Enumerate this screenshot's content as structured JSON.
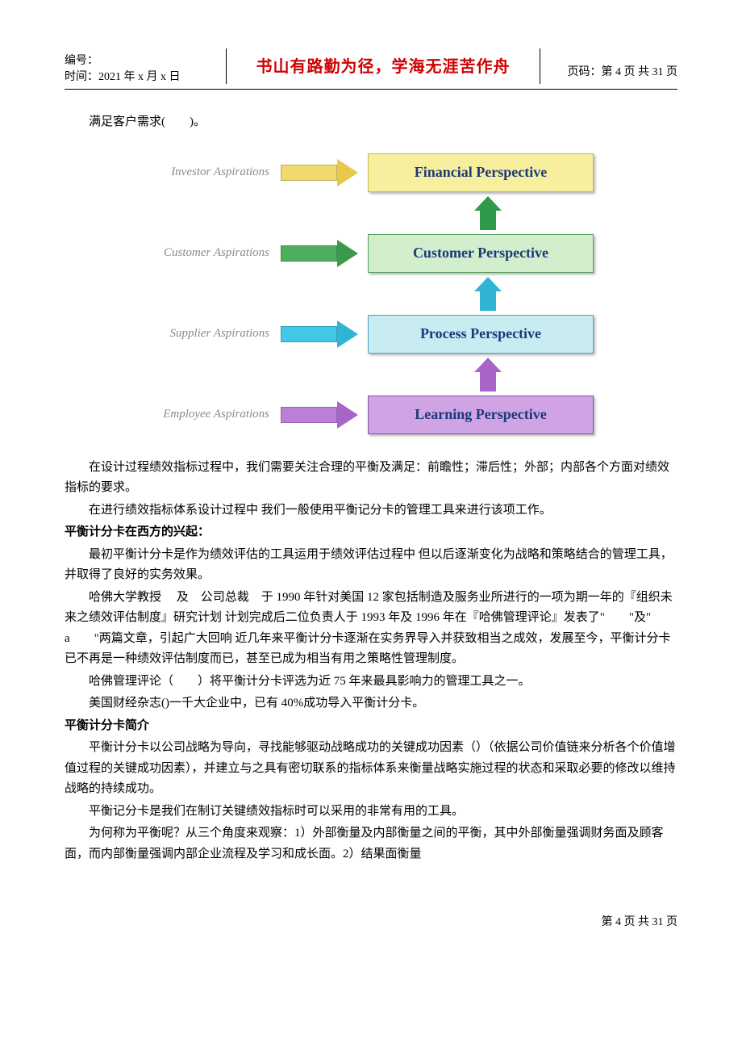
{
  "header": {
    "serial_label": "编号：",
    "time_label": "时间：2021 年 x 月 x 日",
    "motto": "书山有路勤为径，学海无涯苦作舟",
    "page_label": "页码：第 4 页 共 31 页"
  },
  "top_para": "满足客户需求(　　)。",
  "diagram": {
    "rows": [
      {
        "aspiration": "Investor Aspirations",
        "arrow_shaft_color": "#f2d96b",
        "arrow_head_color": "#e8c84a",
        "box_bg": "#f7ef9e",
        "box_border": "#c9b84e",
        "box_text": "Financial Perspective",
        "box_text_color": "#1a3a7a"
      },
      {
        "aspiration": "Customer Aspirations",
        "arrow_shaft_color": "#4fae5e",
        "arrow_head_color": "#3d9a4c",
        "box_bg": "#d3eecd",
        "box_border": "#5aa060",
        "box_text": "Customer Perspective",
        "box_text_color": "#1a3a7a"
      },
      {
        "aspiration": "Supplier Aspirations",
        "arrow_shaft_color": "#3fc8e8",
        "arrow_head_color": "#2fb4d6",
        "box_bg": "#c9ecf3",
        "box_border": "#4aa8bd",
        "box_text": "Process Perspective",
        "box_text_color": "#1a3a7a"
      },
      {
        "aspiration": "Employee Aspirations",
        "arrow_shaft_color": "#bb7fd8",
        "arrow_head_color": "#a864c9",
        "box_bg": "#cfa3e4",
        "box_border": "#8a4fa8",
        "box_text": "Learning Perspective",
        "box_text_color": "#1a3a7a"
      }
    ],
    "connectors": [
      {
        "shaft_color": "#2e9a4a",
        "head_color": "#2e9a4a"
      },
      {
        "shaft_color": "#2fb4d6",
        "head_color": "#2fb4d6"
      },
      {
        "shaft_color": "#a864c9",
        "head_color": "#a864c9"
      }
    ]
  },
  "body": {
    "p1": "在设计过程绩效指标过程中，我们需要关注合理的平衡及满足：前瞻性；滞后性；外部；内部各个方面对绩效指标的要求。",
    "p2": "在进行绩效指标体系设计过程中 我们一般使用平衡记分卡的管理工具来进行该项工作。",
    "h1": "平衡计分卡在西方的兴起：",
    "p3": "最初平衡计分卡是作为绩效评估的工具运用于绩效评估过程中 但以后逐渐变化为战略和策略结合的管理工具，并取得了良好的实务效果。",
    "p4": "哈佛大学教授　 及　公司总裁　于 1990 年针对美国 12 家包括制造及服务业所进行的一项为期一年的『组织未来之绩效评估制度』研究计划 计划完成后二位负责人于 1993 年及 1996 年在『哈佛管理评论』发表了\"　　\"及\"　　a　　\"两篇文章，引起广大回响 近几年来平衡计分卡逐渐在实务界导入并获致相当之成效，发展至今，平衡计分卡已不再是一种绩效评估制度而已，甚至已成为相当有用之策略性管理制度。",
    "p5": "哈佛管理评论（　　）将平衡计分卡评选为近 75 年来最具影响力的管理工具之一。",
    "p6": "美国财经杂志()一千大企业中，已有 40%成功导入平衡计分卡。",
    "h2": "平衡计分卡简介",
    "p7": "平衡计分卡以公司战略为导向，寻找能够驱动战略成功的关键成功因素（）（依据公司价值链来分析各个价值增值过程的关键成功因素），并建立与之具有密切联系的指标体系来衡量战略实施过程的状态和采取必要的修改以维持战略的持续成功。",
    "p8": "平衡记分卡是我们在制订关键绩效指标时可以采用的非常有用的工具。",
    "p9": "为何称为平衡呢？从三个角度来观察：1）外部衡量及内部衡量之间的平衡，其中外部衡量强调财务面及顾客面，而内部衡量强调内部企业流程及学习和成长面。2）结果面衡量"
  },
  "footer": "第 4 页 共 31 页"
}
